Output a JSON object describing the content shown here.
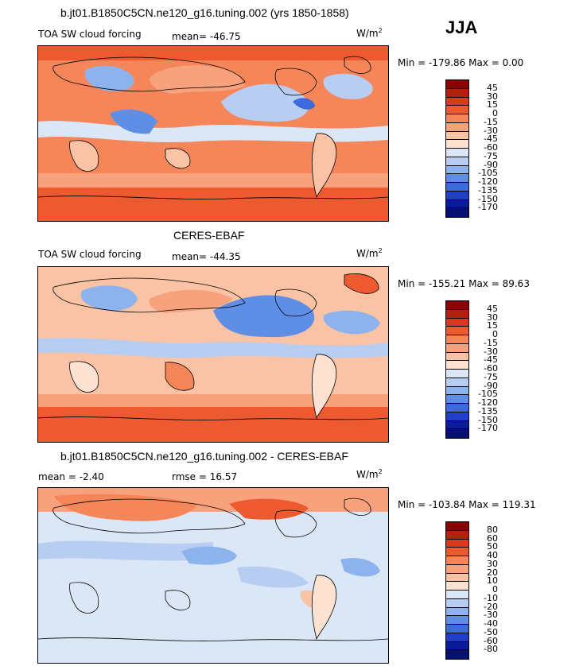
{
  "season": "JJA",
  "panels": [
    {
      "title": "b.jt01.B1850C5CN.ne120_g16.tuning.002 (yrs 1850-1858)",
      "variable": "TOA SW cloud forcing",
      "stat1": "mean=  -46.75",
      "stat2": "",
      "units": "W/m",
      "units_sup": "2",
      "minmax": "Min = -179.86  Max =    0.00",
      "levels": [
        "45",
        "30",
        "15",
        "0",
        "-15",
        "-30",
        "-45",
        "-60",
        "-75",
        "-90",
        "-105",
        "-120",
        "-135",
        "-150",
        "-170"
      ],
      "colors": [
        "#8b0000",
        "#b22010",
        "#d93a1c",
        "#ee5a30",
        "#f4865a",
        "#f7a27c",
        "#fac3a6",
        "#fde2d2",
        "#dbe6f6",
        "#b7cef2",
        "#8db3ee",
        "#5f8ee6",
        "#3b6adb",
        "#1f3fc6",
        "#0a1d98",
        "#061070"
      ],
      "overlay_title": ""
    },
    {
      "title": "CERES-EBAF",
      "variable": "TOA SW cloud forcing",
      "stat1": "mean=  -44.35",
      "stat2": "",
      "units": "W/m",
      "units_sup": "2",
      "minmax": "Min = -155.21  Max =   89.63",
      "levels": [
        "45",
        "30",
        "15",
        "0",
        "-15",
        "-30",
        "-45",
        "-60",
        "-75",
        "-90",
        "-105",
        "-120",
        "-135",
        "-150",
        "-170"
      ],
      "colors": [
        "#8b0000",
        "#b22010",
        "#d93a1c",
        "#ee5a30",
        "#f4865a",
        "#f7a27c",
        "#fac3a6",
        "#fde2d2",
        "#dbe6f6",
        "#b7cef2",
        "#8db3ee",
        "#5f8ee6",
        "#3b6adb",
        "#1f3fc6",
        "#0a1d98",
        "#061070"
      ]
    },
    {
      "title": "b.jt01.B1850C5CN.ne120_g16.tuning.002 - CERES-EBAF",
      "variable": "",
      "stat1": "mean =   -2.40",
      "stat2": "rmse =   16.57",
      "units": "W/m",
      "units_sup": "2",
      "minmax": "Min = -103.84  Max =  119.31",
      "levels": [
        "80",
        "60",
        "50",
        "40",
        "30",
        "20",
        "10",
        "0",
        "-10",
        "-20",
        "-30",
        "-40",
        "-50",
        "-60",
        "-80"
      ],
      "colors": [
        "#8b0000",
        "#b22010",
        "#d93a1c",
        "#ee5a30",
        "#f4865a",
        "#f7a27c",
        "#fac3a6",
        "#fde2d2",
        "#dbe6f6",
        "#b7cef2",
        "#8db3ee",
        "#5f8ee6",
        "#3b6adb",
        "#1f3fc6",
        "#0a1d98",
        "#061070"
      ]
    }
  ]
}
